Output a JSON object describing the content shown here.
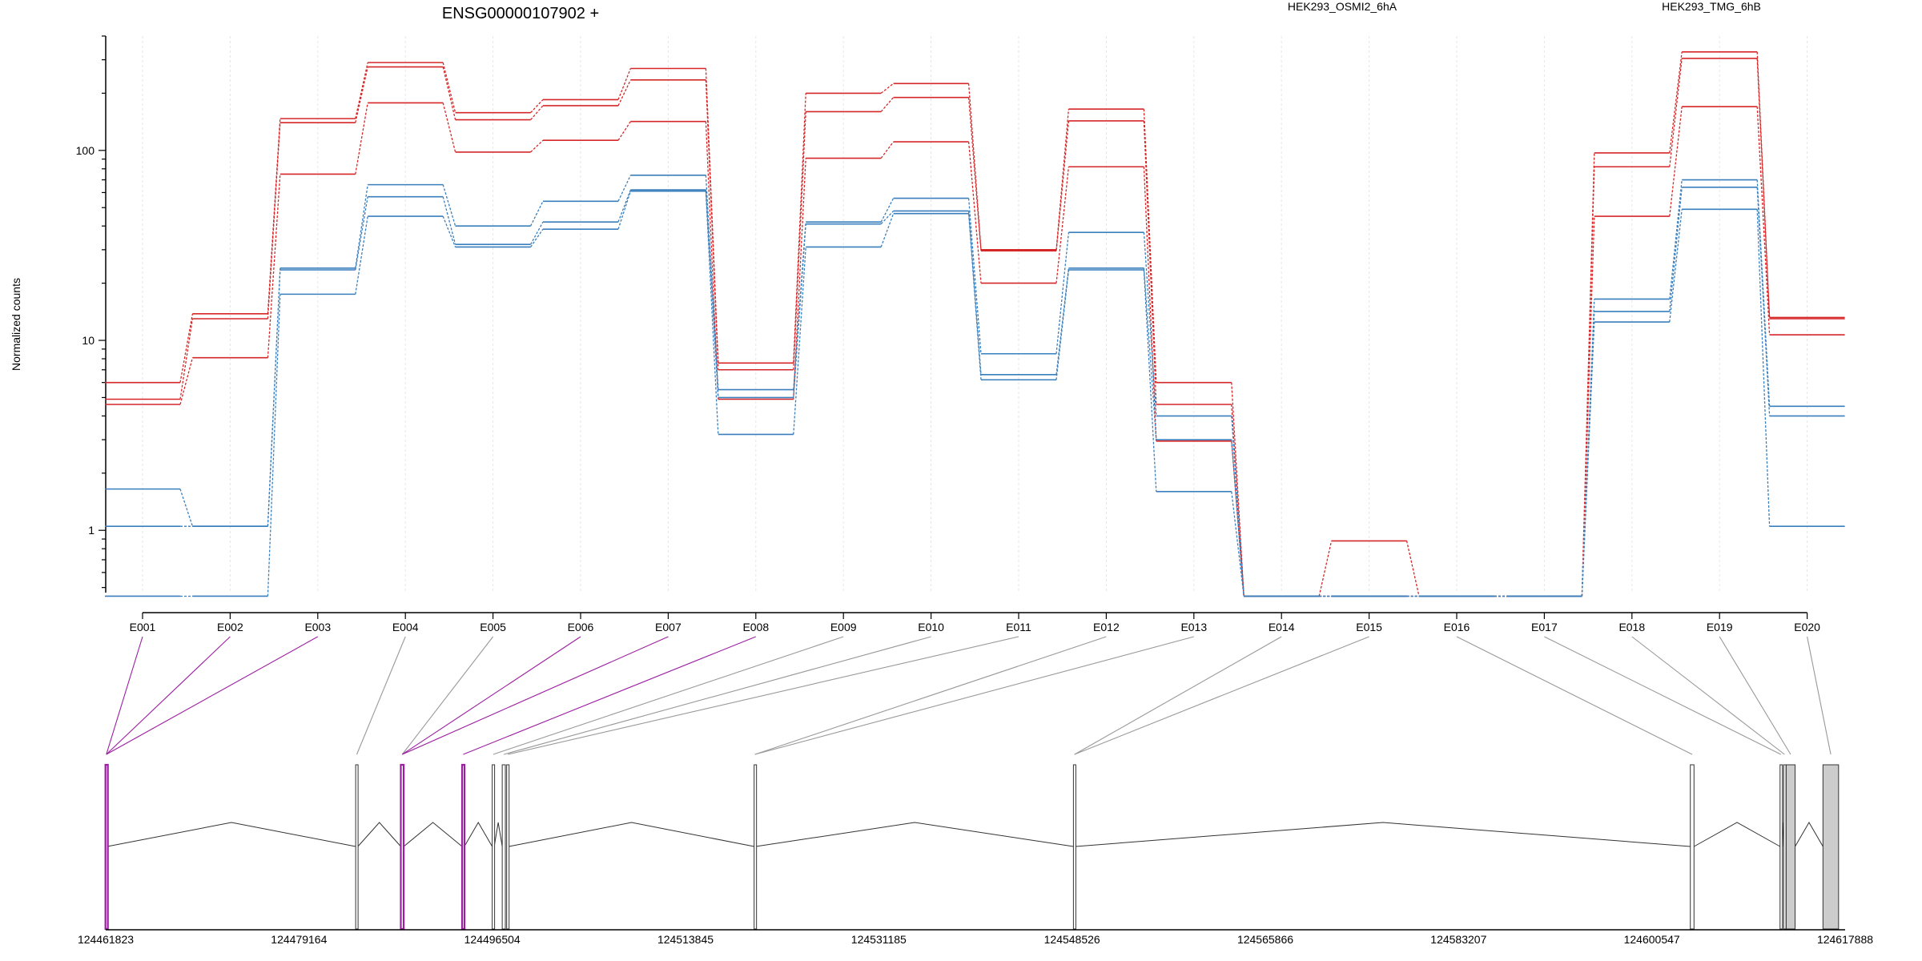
{
  "chart_data": {
    "type": "line",
    "title": "ENSG00000107902 +",
    "ylabel": "Normalized counts",
    "y_scale": "log",
    "ylim": [
      0.47,
      400
    ],
    "y_ticks": [
      {
        "value": 1,
        "label": "1"
      },
      {
        "value": 10,
        "label": "10"
      },
      {
        "value": 100,
        "label": "100"
      }
    ],
    "categories": [
      "E001",
      "E002",
      "E003",
      "E004",
      "E005",
      "E006",
      "E007",
      "E008",
      "E009",
      "E010",
      "E011",
      "E012",
      "E013",
      "E014",
      "E015",
      "E016",
      "E017",
      "E018",
      "E019",
      "E020"
    ],
    "legend": [
      {
        "label": "HEK293_OSMI2_6hA",
        "color": "#d62728"
      },
      {
        "label": "HEK293_TMG_6hB",
        "color": "#3a7fbd"
      }
    ],
    "series": [
      {
        "group": "HEK293_OSMI2_6hA",
        "color": "#d62728",
        "values": [
          6.0,
          13.8,
          147,
          290,
          158,
          185,
          270,
          7.6,
          200,
          225,
          30,
          165,
          6.0,
          0.45,
          0.45,
          0.45,
          0.45,
          97,
          330,
          13.2
        ]
      },
      {
        "group": "HEK293_OSMI2_6hA",
        "color": "#d62728",
        "values": [
          4.9,
          13.0,
          140,
          275,
          145,
          172,
          235,
          7.0,
          160,
          190,
          29.6,
          143,
          4.6,
          0.45,
          0.45,
          0.45,
          0.45,
          82,
          305,
          13.0
        ]
      },
      {
        "group": "HEK293_OSMI2_6hA",
        "color": "#d62728",
        "values": [
          4.6,
          8.1,
          75,
          178,
          98,
          113,
          142,
          4.9,
          91,
          111,
          20,
          82,
          2.95,
          0.45,
          0.88,
          0.45,
          0.45,
          45,
          170,
          10.7
        ]
      },
      {
        "group": "HEK293_TMG_6hB",
        "color": "#3a7fbd",
        "values": [
          1.65,
          1.05,
          24,
          66,
          40,
          54,
          74,
          5.5,
          42,
          56,
          8.5,
          37,
          4.0,
          0.45,
          0.45,
          0.45,
          0.45,
          16.5,
          70,
          4.5
        ]
      },
      {
        "group": "HEK293_TMG_6hB",
        "color": "#3a7fbd",
        "values": [
          1.05,
          1.05,
          23.5,
          57,
          32,
          42,
          62,
          5.0,
          41,
          48,
          6.6,
          24,
          3.0,
          0.45,
          0.45,
          0.45,
          0.45,
          14.2,
          64,
          4.0
        ]
      },
      {
        "group": "HEK293_TMG_6hB",
        "color": "#3a7fbd",
        "values": [
          0.45,
          0.45,
          17.5,
          45,
          31,
          38.5,
          61,
          3.2,
          31,
          46.5,
          6.2,
          23.5,
          1.6,
          0.45,
          0.45,
          0.45,
          0.45,
          12.5,
          49,
          1.05
        ]
      }
    ],
    "gene_model": {
      "axis_ticks": [
        {
          "value": 124461823,
          "label": "124461823"
        },
        {
          "value": 124479164,
          "label": "124479164"
        },
        {
          "value": 124496504,
          "label": "124496504"
        },
        {
          "value": 124513845,
          "label": "124513845"
        },
        {
          "value": 124531185,
          "label": "124531185"
        },
        {
          "value": 124548526,
          "label": "124548526"
        },
        {
          "value": 124565866,
          "label": "124565866"
        },
        {
          "value": 124583207,
          "label": "124583207"
        },
        {
          "value": 124600547,
          "label": "124600547"
        },
        {
          "value": 124617888,
          "label": "124617888"
        }
      ],
      "exons": [
        {
          "id": "E001",
          "start": 124461800,
          "end": 124461960,
          "fill": "#ffffff",
          "highlight": true
        },
        {
          "id": "E002",
          "start": 124461800,
          "end": 124461960,
          "fill": "#ffffff",
          "highlight": true
        },
        {
          "id": "E003",
          "start": 124461800,
          "end": 124461960,
          "fill": "#ffffff",
          "highlight": true
        },
        {
          "id": "E004",
          "start": 124484250,
          "end": 124484450,
          "fill": "#ffffff",
          "highlight": false
        },
        {
          "id": "E005",
          "start": 124488300,
          "end": 124488560,
          "fill": "#ffffff",
          "highlight": false
        },
        {
          "id": "E006",
          "start": 124488300,
          "end": 124488560,
          "fill": "#ffffff",
          "highlight": true
        },
        {
          "id": "E007",
          "start": 124488300,
          "end": 124488560,
          "fill": "#ffffff",
          "highlight": true
        },
        {
          "id": "E008",
          "start": 124493800,
          "end": 124494000,
          "fill": "#ffffff",
          "highlight": true
        },
        {
          "id": "E009",
          "start": 124496500,
          "end": 124496680,
          "fill": "#ffffff",
          "highlight": false
        },
        {
          "id": "E010",
          "start": 124497400,
          "end": 124497680,
          "fill": "#ffffff",
          "highlight": false
        },
        {
          "id": "E011",
          "start": 124497800,
          "end": 124498000,
          "fill": "#ffffff",
          "highlight": false
        },
        {
          "id": "E012",
          "start": 124520000,
          "end": 124520150,
          "fill": "#ffffff",
          "highlight": false
        },
        {
          "id": "E013",
          "start": 124520000,
          "end": 124520150,
          "fill": "#ffffff",
          "highlight": false
        },
        {
          "id": "E014",
          "start": 124548650,
          "end": 124548850,
          "fill": "#ffffff",
          "highlight": false
        },
        {
          "id": "E015",
          "start": 124548650,
          "end": 124548850,
          "fill": "#ffffff",
          "highlight": false
        },
        {
          "id": "E016",
          "start": 124604000,
          "end": 124604330,
          "fill": "#ffffff",
          "highlight": false
        },
        {
          "id": "E017",
          "start": 124612050,
          "end": 124612190,
          "fill": "#ffffff",
          "highlight": false
        },
        {
          "id": "E018",
          "start": 124612370,
          "end": 124612530,
          "fill": "#ffffff",
          "highlight": false
        },
        {
          "id": "E019",
          "start": 124612600,
          "end": 124613400,
          "fill": "#cccccc",
          "highlight": false
        },
        {
          "id": "E020",
          "start": 124615900,
          "end": 124617300,
          "fill": "#cccccc",
          "highlight": false
        }
      ],
      "segments": [
        {
          "start": 124461800,
          "end": 124461960,
          "highlight": true
        },
        {
          "start": 124484250,
          "end": 124484450,
          "highlight": false
        },
        {
          "start": 124488300,
          "end": 124488560,
          "highlight": true
        },
        {
          "start": 124493800,
          "end": 124494000,
          "highlight": true
        },
        {
          "start": 124496500,
          "end": 124496680,
          "highlight": false
        },
        {
          "start": 124497400,
          "end": 124497680,
          "highlight": false
        },
        {
          "start": 124497800,
          "end": 124498000,
          "highlight": false
        },
        {
          "start": 124520000,
          "end": 124520150,
          "highlight": false
        },
        {
          "start": 124548650,
          "end": 124548850,
          "highlight": false
        },
        {
          "start": 124604000,
          "end": 124604330,
          "highlight": false
        },
        {
          "start": 124612050,
          "end": 124612190,
          "highlight": false
        },
        {
          "start": 124612370,
          "end": 124612530,
          "highlight": false
        },
        {
          "start": 124612600,
          "end": 124613400,
          "highlight": false,
          "fill": "#cccccc"
        },
        {
          "start": 124615900,
          "end": 124617300,
          "highlight": false,
          "fill": "#cccccc"
        }
      ]
    },
    "highlight_color": "#9b1fa0"
  }
}
